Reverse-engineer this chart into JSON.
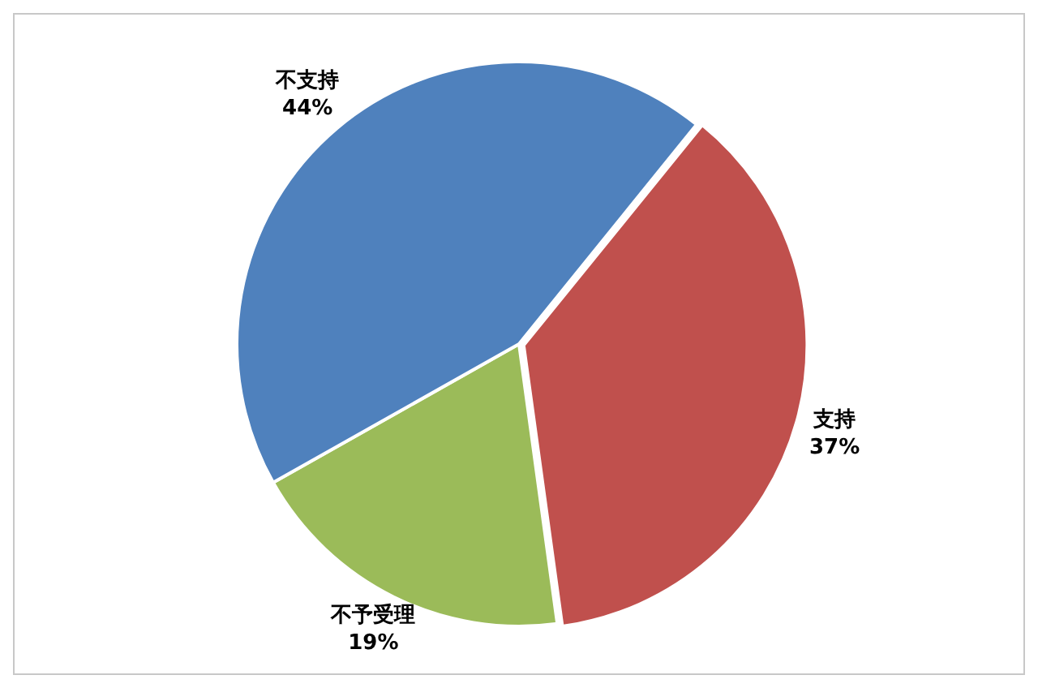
{
  "chart_data": {
    "type": "pie",
    "categories": [
      "支持",
      "不予受理",
      "不支持"
    ],
    "values": [
      37,
      19,
      44
    ],
    "value_labels": [
      "37%",
      "19%",
      "44%"
    ],
    "colors": [
      "#c0504d",
      "#9bbb59",
      "#4f81bd"
    ],
    "legend": false
  }
}
